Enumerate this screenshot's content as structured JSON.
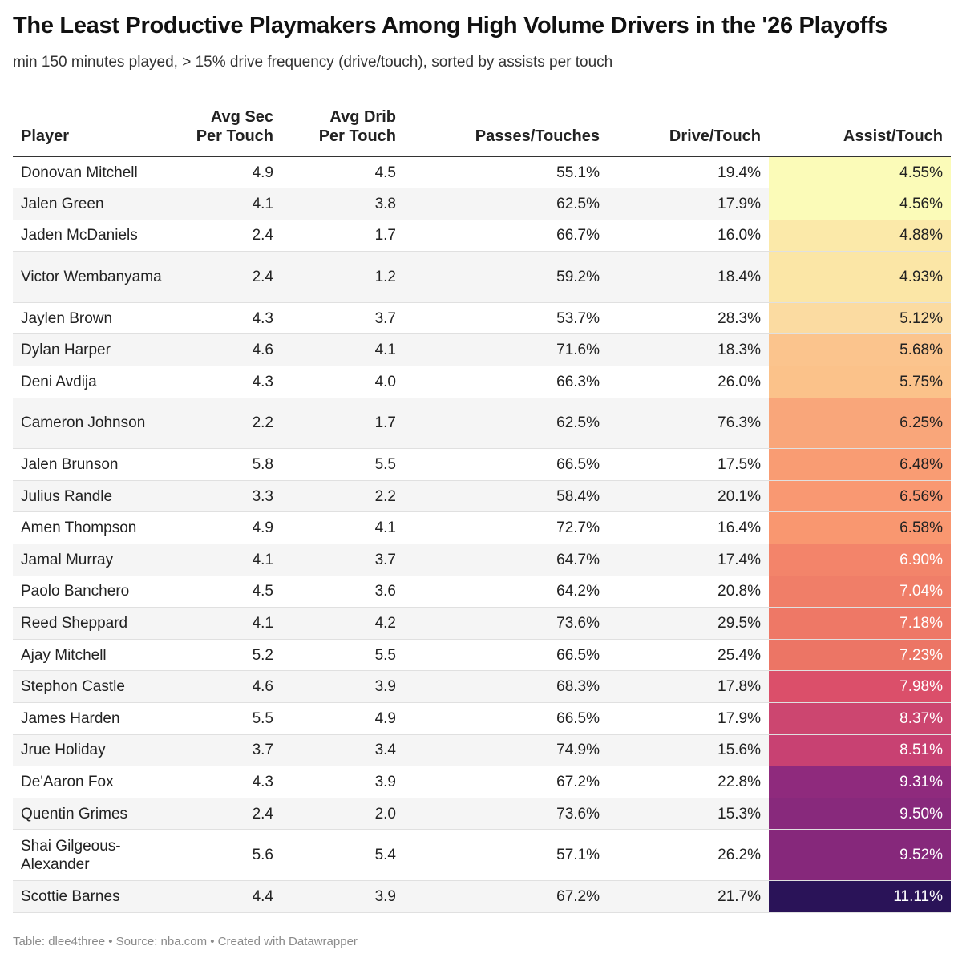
{
  "title": "The Least Productive Playmakers Among High Volume Drivers in the '26 Playoffs",
  "subtitle": "min 150 minutes played, > 15% drive frequency (drive/touch), sorted by assists per touch",
  "footer": "Table: dlee4three • Source: nba.com • Created with Datawrapper",
  "chart_data": {
    "type": "table",
    "columns": [
      "Player",
      "Avg Sec Per Touch",
      "Avg Drib Per Touch",
      "Passes/Touches",
      "Drive/Touch",
      "Assist/Touch"
    ],
    "rows": [
      {
        "player": "Donovan Mitchell",
        "sec": "4.9",
        "drib": "4.5",
        "passes": "55.1%",
        "drive": "19.4%",
        "assist": "4.55%",
        "assist_value": 4.55,
        "heat_color": "#fbfbb8",
        "heat_text": "#222222"
      },
      {
        "player": "Jalen Green",
        "sec": "4.1",
        "drib": "3.8",
        "passes": "62.5%",
        "drive": "17.9%",
        "assist": "4.56%",
        "assist_value": 4.56,
        "heat_color": "#fbfbb8",
        "heat_text": "#222222"
      },
      {
        "player": "Jaden McDaniels",
        "sec": "2.4",
        "drib": "1.7",
        "passes": "66.7%",
        "drive": "16.0%",
        "assist": "4.88%",
        "assist_value": 4.88,
        "heat_color": "#fbe9a9",
        "heat_text": "#222222"
      },
      {
        "player": "Victor Wembanyama",
        "sec": "2.4",
        "drib": "1.2",
        "passes": "59.2%",
        "drive": "18.4%",
        "assist": "4.93%",
        "assist_value": 4.93,
        "heat_color": "#fbe6a6",
        "heat_text": "#222222"
      },
      {
        "player": "Jaylen Brown",
        "sec": "4.3",
        "drib": "3.7",
        "passes": "53.7%",
        "drive": "28.3%",
        "assist": "5.12%",
        "assist_value": 5.12,
        "heat_color": "#fbdba1",
        "heat_text": "#222222"
      },
      {
        "player": "Dylan Harper",
        "sec": "4.6",
        "drib": "4.1",
        "passes": "71.6%",
        "drive": "18.3%",
        "assist": "5.68%",
        "assist_value": 5.68,
        "heat_color": "#fbc48d",
        "heat_text": "#222222"
      },
      {
        "player": "Deni Avdija",
        "sec": "4.3",
        "drib": "4.0",
        "passes": "66.3%",
        "drive": "26.0%",
        "assist": "5.75%",
        "assist_value": 5.75,
        "heat_color": "#fbc28a",
        "heat_text": "#222222"
      },
      {
        "player": "Cameron Johnson",
        "sec": "2.2",
        "drib": "1.7",
        "passes": "62.5%",
        "drive": "76.3%",
        "assist": "6.25%",
        "assist_value": 6.25,
        "heat_color": "#f9a67a",
        "heat_text": "#222222"
      },
      {
        "player": "Jalen Brunson",
        "sec": "5.8",
        "drib": "5.5",
        "passes": "66.5%",
        "drive": "17.5%",
        "assist": "6.48%",
        "assist_value": 6.48,
        "heat_color": "#f99c73",
        "heat_text": "#222222"
      },
      {
        "player": "Julius Randle",
        "sec": "3.3",
        "drib": "2.2",
        "passes": "58.4%",
        "drive": "20.1%",
        "assist": "6.56%",
        "assist_value": 6.56,
        "heat_color": "#f99872",
        "heat_text": "#222222"
      },
      {
        "player": "Amen Thompson",
        "sec": "4.9",
        "drib": "4.1",
        "passes": "72.7%",
        "drive": "16.4%",
        "assist": "6.58%",
        "assist_value": 6.58,
        "heat_color": "#f99770",
        "heat_text": "#222222"
      },
      {
        "player": "Jamal Murray",
        "sec": "4.1",
        "drib": "3.7",
        "passes": "64.7%",
        "drive": "17.4%",
        "assist": "6.90%",
        "assist_value": 6.9,
        "heat_color": "#f3846a",
        "heat_text": "#ffffff"
      },
      {
        "player": "Paolo Banchero",
        "sec": "4.5",
        "drib": "3.6",
        "passes": "64.2%",
        "drive": "20.8%",
        "assist": "7.04%",
        "assist_value": 7.04,
        "heat_color": "#f07e68",
        "heat_text": "#ffffff"
      },
      {
        "player": "Reed Sheppard",
        "sec": "4.1",
        "drib": "4.2",
        "passes": "73.6%",
        "drive": "29.5%",
        "assist": "7.18%",
        "assist_value": 7.18,
        "heat_color": "#ee7866",
        "heat_text": "#ffffff"
      },
      {
        "player": "Ajay Mitchell",
        "sec": "5.2",
        "drib": "5.5",
        "passes": "66.5%",
        "drive": "25.4%",
        "assist": "7.23%",
        "assist_value": 7.23,
        "heat_color": "#ec7565",
        "heat_text": "#ffffff"
      },
      {
        "player": "Stephon Castle",
        "sec": "4.6",
        "drib": "3.9",
        "passes": "68.3%",
        "drive": "17.8%",
        "assist": "7.98%",
        "assist_value": 7.98,
        "heat_color": "#db4f6a",
        "heat_text": "#ffffff"
      },
      {
        "player": "James Harden",
        "sec": "5.5",
        "drib": "4.9",
        "passes": "66.5%",
        "drive": "17.9%",
        "assist": "8.37%",
        "assist_value": 8.37,
        "heat_color": "#cc4670",
        "heat_text": "#ffffff"
      },
      {
        "player": "Jrue Holiday",
        "sec": "3.7",
        "drib": "3.4",
        "passes": "74.9%",
        "drive": "15.6%",
        "assist": "8.51%",
        "assist_value": 8.51,
        "heat_color": "#c84172",
        "heat_text": "#ffffff"
      },
      {
        "player": "De'Aaron Fox",
        "sec": "4.3",
        "drib": "3.9",
        "passes": "67.2%",
        "drive": "22.8%",
        "assist": "9.31%",
        "assist_value": 9.31,
        "heat_color": "#8f2a7d",
        "heat_text": "#ffffff"
      },
      {
        "player": "Quentin Grimes",
        "sec": "2.4",
        "drib": "2.0",
        "passes": "73.6%",
        "drive": "15.3%",
        "assist": "9.50%",
        "assist_value": 9.5,
        "heat_color": "#88297c",
        "heat_text": "#ffffff"
      },
      {
        "player": "Shai Gilgeous-Alexander",
        "sec": "5.6",
        "drib": "5.4",
        "passes": "57.1%",
        "drive": "26.2%",
        "assist": "9.52%",
        "assist_value": 9.52,
        "heat_color": "#86287b",
        "heat_text": "#ffffff"
      },
      {
        "player": "Scottie Barnes",
        "sec": "4.4",
        "drib": "3.9",
        "passes": "67.2%",
        "drive": "21.7%",
        "assist": "11.11%",
        "assist_value": 11.11,
        "heat_color": "#2a1358",
        "heat_text": "#ffffff"
      }
    ]
  }
}
